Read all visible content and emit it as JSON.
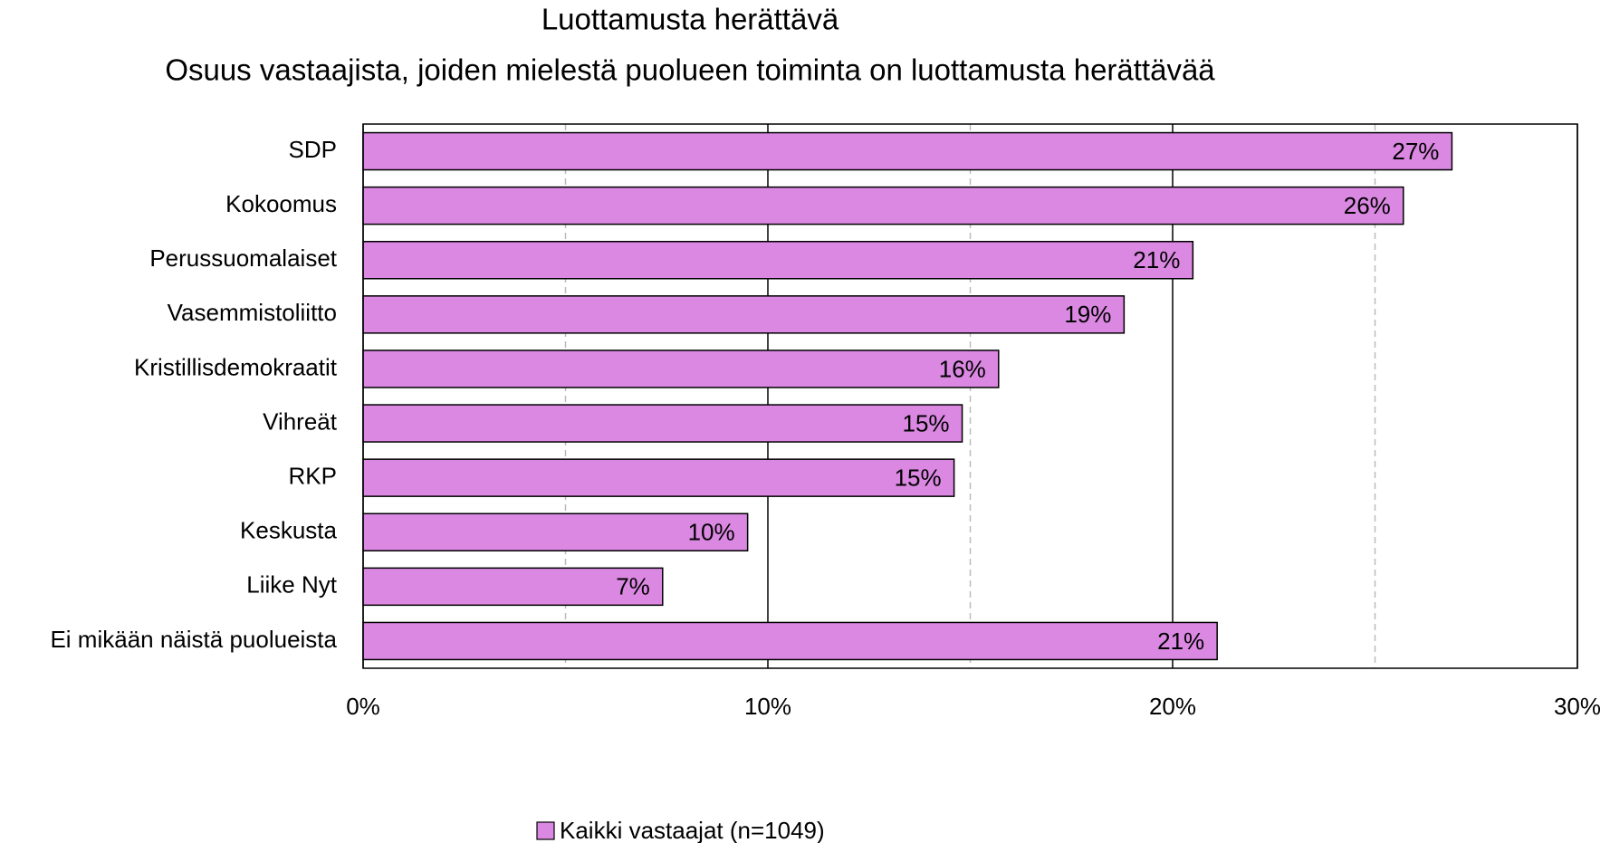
{
  "chart_data": {
    "type": "bar",
    "orientation": "horizontal",
    "title": "Luottamusta herättävä",
    "subtitle": "Osuus vastaajista, joiden mielestä puolueen toiminta on luottamusta herättävää",
    "categories": [
      "SDP",
      "Kokoomus",
      "Perussuomalaiset",
      "Vasemmistoliitto",
      "Kristillisdemokraatit",
      "Vihreät",
      "RKP",
      "Keskusta",
      "Liike Nyt",
      "Ei mikään näistä puolueista"
    ],
    "series": [
      {
        "name": "Kaikki vastaajat (n=1049)",
        "color": "#da88e1",
        "values": [
          26.9,
          25.7,
          20.5,
          18.8,
          15.7,
          14.8,
          14.6,
          9.5,
          7.4,
          21.1
        ],
        "value_labels": [
          "27%",
          "26%",
          "21%",
          "19%",
          "16%",
          "15%",
          "15%",
          "10%",
          "7%",
          "21%"
        ]
      }
    ],
    "xlim": [
      0,
      30
    ],
    "xticks": [
      {
        "value": 0,
        "label": "0%"
      },
      {
        "value": 10,
        "label": "10%"
      },
      {
        "value": 20,
        "label": "20%"
      },
      {
        "value": 30,
        "label": "30%"
      }
    ],
    "minor_grid": [
      5,
      15,
      25
    ],
    "grid": true,
    "legend": "bottom"
  }
}
